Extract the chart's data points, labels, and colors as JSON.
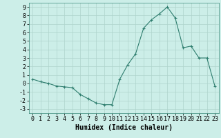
{
  "x": [
    0,
    1,
    2,
    3,
    4,
    5,
    6,
    7,
    8,
    9,
    10,
    11,
    12,
    13,
    14,
    15,
    16,
    17,
    18,
    19,
    20,
    21,
    22,
    23
  ],
  "y": [
    0.5,
    0.2,
    0.0,
    -0.3,
    -0.4,
    -0.5,
    -1.3,
    -1.8,
    -2.3,
    -2.5,
    -2.5,
    0.5,
    2.2,
    3.5,
    6.5,
    7.5,
    8.2,
    9.0,
    7.7,
    4.2,
    4.4,
    3.0,
    3.0,
    -0.3
  ],
  "xlabel": "Humidex (Indice chaleur)",
  "xlim": [
    -0.5,
    23.5
  ],
  "ylim": [
    -3.5,
    9.5
  ],
  "yticks": [
    -3,
    -2,
    -1,
    0,
    1,
    2,
    3,
    4,
    5,
    6,
    7,
    8,
    9
  ],
  "xticks": [
    0,
    1,
    2,
    3,
    4,
    5,
    6,
    7,
    8,
    9,
    10,
    11,
    12,
    13,
    14,
    15,
    16,
    17,
    18,
    19,
    20,
    21,
    22,
    23
  ],
  "line_color": "#2e7d6e",
  "bg_color": "#cceee8",
  "grid_color": "#aed4cc",
  "xlabel_fontsize": 7,
  "tick_fontsize": 6
}
